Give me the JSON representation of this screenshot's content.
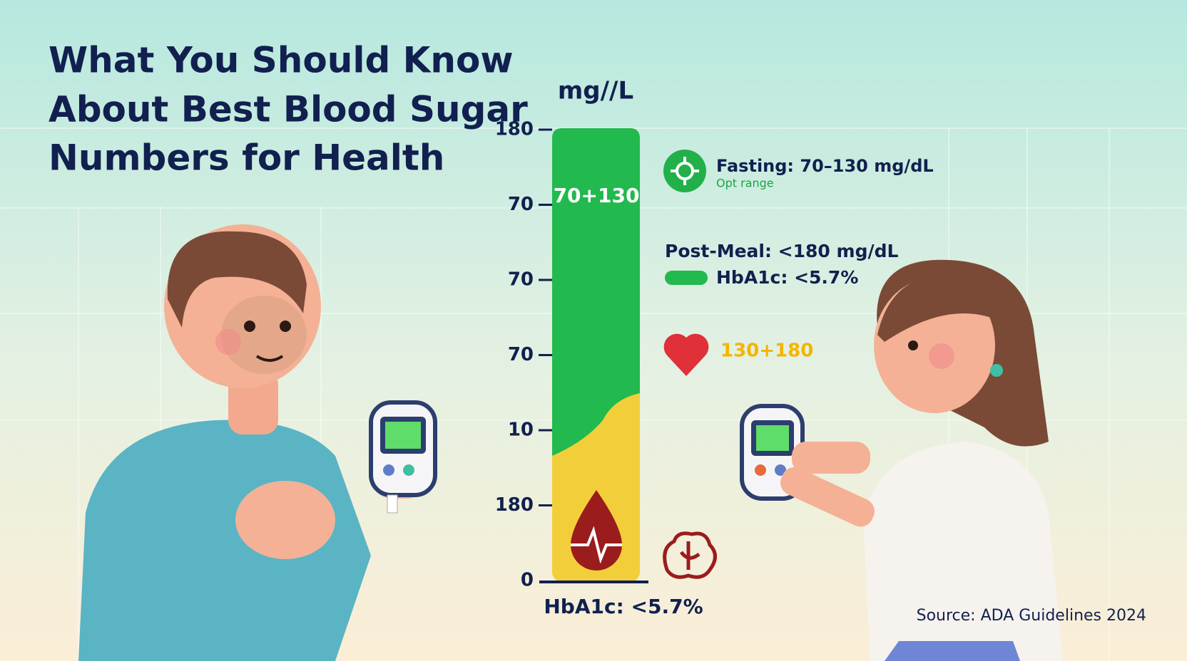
{
  "header": {
    "title_lines": [
      "What You Should Know",
      "About Best Blood Sugar",
      "Numbers for Health"
    ]
  },
  "gauge": {
    "unit": "mg//L",
    "tick_labels": [
      "180",
      "70",
      "70",
      "70",
      "10",
      "180",
      "0"
    ],
    "bar_label": "70+130",
    "footer": "HbA1c: <5.7%"
  },
  "legend": {
    "fasting": "Fasting: 70–130 mg/dL",
    "fasting_note": "Opt range",
    "post_meal": "Post-Meal: <180 mg/dL",
    "hba1c": "HbA1c: <5.7%",
    "heart_range": "130+180"
  },
  "source": "Source: ADA Guidelines 2024"
}
